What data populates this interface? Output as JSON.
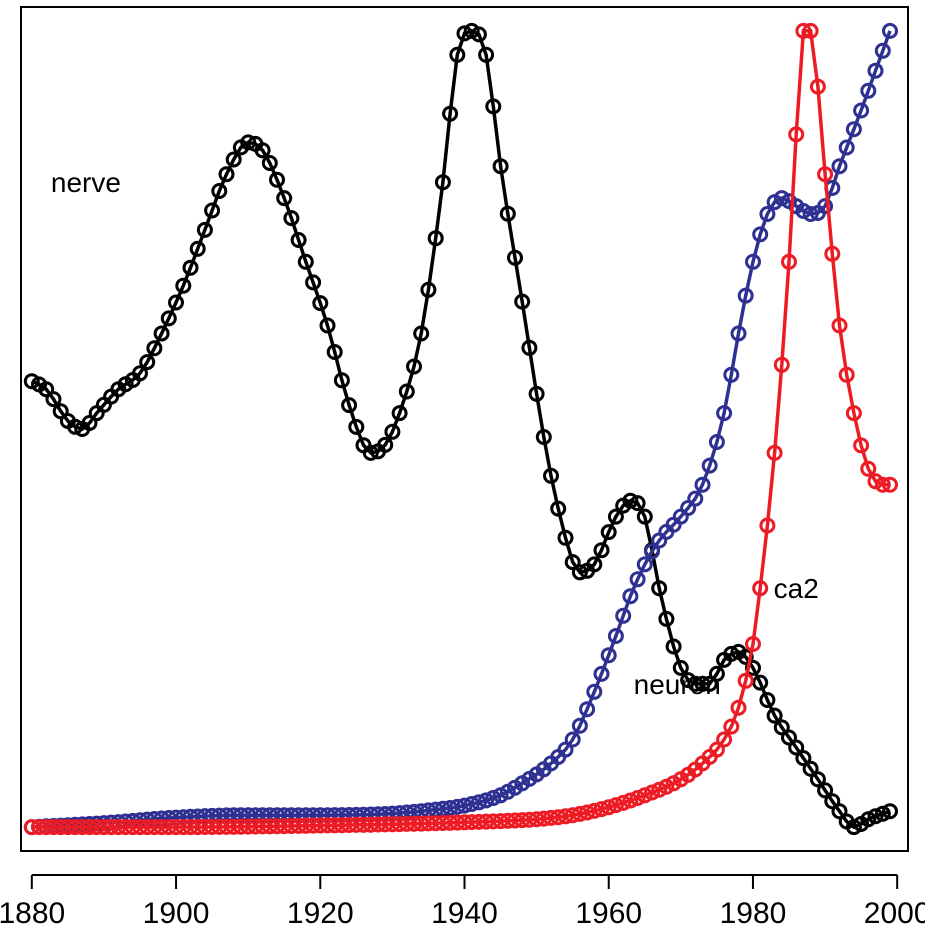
{
  "chart_data": {
    "type": "line",
    "title": "",
    "xlabel": "",
    "ylabel": "",
    "xlim": [
      1878.5,
      2001.5
    ],
    "ylim": [
      -0.03,
      1.03
    ],
    "xticks": [
      1880,
      1900,
      1920,
      1940,
      1960,
      1980,
      2000
    ],
    "xtick_labels": [
      "1880",
      "1900",
      "1920",
      "1940",
      "1960",
      "1980",
      "2000"
    ],
    "y_axis_shown": false,
    "grid": false,
    "markers": "open-circle",
    "series": [
      {
        "name": "nerve",
        "color": "#000000",
        "label_anchor": [
          1887.5,
          0.81
        ],
        "anchors": [
          [
            1880,
            0.56
          ],
          [
            1882,
            0.55
          ],
          [
            1885,
            0.51
          ],
          [
            1887,
            0.5
          ],
          [
            1889,
            0.52
          ],
          [
            1892,
            0.55
          ],
          [
            1895,
            0.57
          ],
          [
            1898,
            0.62
          ],
          [
            1901,
            0.68
          ],
          [
            1904,
            0.75
          ],
          [
            1907,
            0.82
          ],
          [
            1910,
            0.86
          ],
          [
            1912,
            0.85
          ],
          [
            1915,
            0.79
          ],
          [
            1918,
            0.71
          ],
          [
            1921,
            0.63
          ],
          [
            1924,
            0.53
          ],
          [
            1927,
            0.47
          ],
          [
            1929,
            0.48
          ],
          [
            1931,
            0.52
          ],
          [
            1934,
            0.62
          ],
          [
            1937,
            0.81
          ],
          [
            1939,
            0.97
          ],
          [
            1941,
            1.0
          ],
          [
            1943,
            0.97
          ],
          [
            1945,
            0.83
          ],
          [
            1948,
            0.66
          ],
          [
            1951,
            0.49
          ],
          [
            1953,
            0.4
          ],
          [
            1956,
            0.32
          ],
          [
            1958,
            0.33
          ],
          [
            1961,
            0.39
          ],
          [
            1963,
            0.41
          ],
          [
            1965,
            0.39
          ],
          [
            1967,
            0.3
          ],
          [
            1970,
            0.2
          ],
          [
            1972,
            0.18
          ],
          [
            1974,
            0.18
          ],
          [
            1976,
            0.21
          ],
          [
            1978,
            0.22
          ],
          [
            1980,
            0.2
          ],
          [
            1983,
            0.14
          ],
          [
            1986,
            0.1
          ],
          [
            1989,
            0.06
          ],
          [
            1992,
            0.02
          ],
          [
            1994,
            0.0
          ],
          [
            1996,
            0.01
          ],
          [
            1999,
            0.02
          ]
        ]
      },
      {
        "name": "neuron",
        "color": "#2e3192",
        "label_anchor": [
          1969.5,
          0.18
        ],
        "anchors": [
          [
            1880,
            0.0
          ],
          [
            1890,
            0.005
          ],
          [
            1900,
            0.012
          ],
          [
            1910,
            0.015
          ],
          [
            1920,
            0.015
          ],
          [
            1930,
            0.017
          ],
          [
            1936,
            0.022
          ],
          [
            1940,
            0.027
          ],
          [
            1945,
            0.04
          ],
          [
            1948,
            0.055
          ],
          [
            1952,
            0.08
          ],
          [
            1955,
            0.11
          ],
          [
            1958,
            0.17
          ],
          [
            1961,
            0.24
          ],
          [
            1963,
            0.29
          ],
          [
            1965,
            0.33
          ],
          [
            1967,
            0.36
          ],
          [
            1970,
            0.39
          ],
          [
            1973,
            0.43
          ],
          [
            1976,
            0.52
          ],
          [
            1978,
            0.62
          ],
          [
            1980,
            0.71
          ],
          [
            1982,
            0.77
          ],
          [
            1984,
            0.79
          ],
          [
            1986,
            0.78
          ],
          [
            1988,
            0.77
          ],
          [
            1990,
            0.78
          ],
          [
            1992,
            0.83
          ],
          [
            1995,
            0.9
          ],
          [
            1997,
            0.95
          ],
          [
            1999,
            1.0
          ]
        ]
      },
      {
        "name": "ca2",
        "color": "#ed1c24",
        "label_anchor": [
          1986,
          0.3
        ],
        "anchors": [
          [
            1880,
            0.0
          ],
          [
            1900,
            0.0
          ],
          [
            1920,
            0.002
          ],
          [
            1940,
            0.006
          ],
          [
            1950,
            0.01
          ],
          [
            1955,
            0.015
          ],
          [
            1960,
            0.025
          ],
          [
            1965,
            0.04
          ],
          [
            1970,
            0.06
          ],
          [
            1973,
            0.08
          ],
          [
            1976,
            0.11
          ],
          [
            1978,
            0.15
          ],
          [
            1980,
            0.23
          ],
          [
            1981,
            0.3
          ],
          [
            1983,
            0.47
          ],
          [
            1985,
            0.71
          ],
          [
            1986,
            0.87
          ],
          [
            1987,
            1.0
          ],
          [
            1988,
            1.0
          ],
          [
            1989,
            0.93
          ],
          [
            1990,
            0.82
          ],
          [
            1991,
            0.72
          ],
          [
            1992,
            0.63
          ],
          [
            1994,
            0.52
          ],
          [
            1996,
            0.45
          ],
          [
            1998,
            0.43
          ],
          [
            1999,
            0.43
          ]
        ]
      }
    ]
  }
}
